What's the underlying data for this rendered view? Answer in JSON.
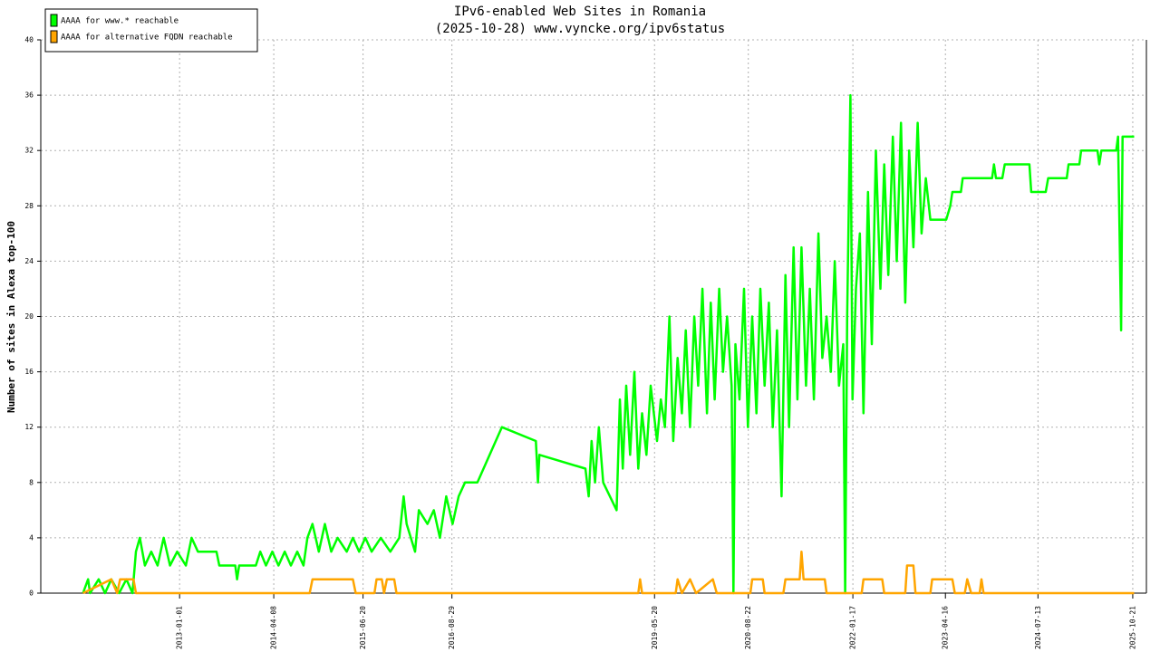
{
  "chart_data": {
    "type": "line",
    "title": "IPv6-enabled Web Sites in Romania",
    "subtitle": "(2025-10-28) www.vyncke.org/ipv6status",
    "y_label": "Number of sites in Alexa top-100",
    "xlim": [
      "2011-02-20",
      "2025-12-27"
    ],
    "xticks": [
      "2013-01-01",
      "2014-04-08",
      "2015-06-20",
      "2016-08-29",
      "2019-05-20",
      "2020-08-22",
      "2022-01-17",
      "2023-04-16",
      "2024-07-13",
      "2025-10-21"
    ],
    "ylim": [
      0,
      40
    ],
    "yticks": [
      0,
      4,
      8,
      12,
      16,
      20,
      24,
      28,
      32,
      36,
      40
    ],
    "grid": true,
    "legend": "top-left",
    "series": [
      {
        "name": "AAAA for www.* reachable",
        "color": "#00ff00",
        "x": [
          "2011-09-15",
          "2011-10-10",
          "2011-10-20",
          "2011-12-01",
          "2012-01-01",
          "2012-02-01",
          "2012-03-10",
          "2012-04-15",
          "2012-05-15",
          "2012-06-01",
          "2012-06-20",
          "2012-07-15",
          "2012-08-15",
          "2012-09-15",
          "2012-10-15",
          "2012-11-15",
          "2012-12-20",
          "2013-02-01",
          "2013-03-01",
          "2013-04-01",
          "2013-07-01",
          "2013-07-15",
          "2013-10-01",
          "2013-10-10",
          "2013-10-20",
          "2014-01-10",
          "2014-02-01",
          "2014-03-01",
          "2014-04-01",
          "2014-05-01",
          "2014-06-01",
          "2014-07-01",
          "2014-08-01",
          "2014-09-01",
          "2014-09-20",
          "2014-10-15",
          "2014-11-15",
          "2014-12-15",
          "2015-01-15",
          "2015-02-15",
          "2015-04-01",
          "2015-05-01",
          "2015-06-01",
          "2015-07-01",
          "2015-08-01",
          "2015-09-15",
          "2015-11-01",
          "2015-12-15",
          "2016-01-05",
          "2016-01-20",
          "2016-03-01",
          "2016-03-20",
          "2016-05-01",
          "2016-06-01",
          "2016-07-01",
          "2016-08-01",
          "2016-09-01",
          "2016-10-01",
          "2016-11-01",
          "2017-01-01",
          "2017-05-01",
          "2017-10-15",
          "2017-10-25",
          "2017-11-01",
          "2018-06-15",
          "2018-07-01",
          "2018-07-15",
          "2018-08-01",
          "2018-08-20",
          "2018-09-10",
          "2018-11-15",
          "2018-12-01",
          "2018-12-15",
          "2019-01-01",
          "2019-01-20",
          "2019-02-10",
          "2019-03-01",
          "2019-03-20",
          "2019-04-10",
          "2019-05-01",
          "2019-06-01",
          "2019-06-20",
          "2019-07-10",
          "2019-08-01",
          "2019-08-20",
          "2019-09-10",
          "2019-10-01",
          "2019-10-20",
          "2019-11-10",
          "2019-12-01",
          "2019-12-20",
          "2020-01-10",
          "2020-02-01",
          "2020-02-20",
          "2020-03-10",
          "2020-04-01",
          "2020-04-20",
          "2020-05-10",
          "2020-06-01",
          "2020-06-10",
          "2020-06-20",
          "2020-07-10",
          "2020-08-01",
          "2020-08-20",
          "2020-09-10",
          "2020-10-01",
          "2020-10-20",
          "2020-11-10",
          "2020-12-01",
          "2020-12-20",
          "2021-01-10",
          "2021-02-01",
          "2021-02-20",
          "2021-03-10",
          "2021-04-01",
          "2021-04-20",
          "2021-05-10",
          "2021-06-01",
          "2021-06-20",
          "2021-07-10",
          "2021-08-01",
          "2021-08-20",
          "2021-09-10",
          "2021-10-01",
          "2021-10-20",
          "2021-11-10",
          "2021-12-01",
          "2021-12-10",
          "2021-12-20",
          "2022-01-05",
          "2022-01-15",
          "2022-02-01",
          "2022-02-20",
          "2022-03-10",
          "2022-04-01",
          "2022-04-20",
          "2022-05-10",
          "2022-06-01",
          "2022-06-20",
          "2022-07-10",
          "2022-08-01",
          "2022-08-20",
          "2022-09-10",
          "2022-10-01",
          "2022-10-20",
          "2022-11-10",
          "2022-12-01",
          "2022-12-20",
          "2023-01-10",
          "2023-02-01",
          "2023-04-20",
          "2023-05-10",
          "2023-05-20",
          "2023-07-01",
          "2023-07-10",
          "2023-12-01",
          "2023-12-10",
          "2023-12-20",
          "2024-01-20",
          "2024-02-01",
          "2024-06-01",
          "2024-06-10",
          "2024-08-20",
          "2024-09-01",
          "2024-12-01",
          "2024-12-10",
          "2025-02-01",
          "2025-02-10",
          "2025-05-01",
          "2025-05-10",
          "2025-05-20",
          "2025-08-01",
          "2025-08-10",
          "2025-08-25",
          "2025-09-01",
          "2025-10-28"
        ],
        "values": [
          0,
          1,
          0,
          1,
          0,
          1,
          0,
          1,
          0,
          3,
          4,
          2,
          3,
          2,
          4,
          2,
          3,
          2,
          4,
          3,
          3,
          2,
          2,
          1,
          2,
          2,
          3,
          2,
          3,
          2,
          3,
          2,
          3,
          2,
          4,
          5,
          3,
          5,
          3,
          4,
          3,
          4,
          3,
          4,
          3,
          4,
          3,
          4,
          7,
          5,
          3,
          6,
          5,
          6,
          4,
          7,
          5,
          7,
          8,
          8,
          12,
          11,
          8,
          10,
          9,
          7,
          11,
          8,
          12,
          8,
          6,
          14,
          9,
          15,
          10,
          16,
          9,
          13,
          10,
          15,
          11,
          14,
          12,
          20,
          11,
          17,
          13,
          19,
          12,
          20,
          15,
          22,
          13,
          21,
          14,
          22,
          16,
          20,
          15,
          0,
          18,
          14,
          22,
          12,
          20,
          13,
          22,
          15,
          21,
          12,
          19,
          7,
          23,
          12,
          25,
          14,
          25,
          15,
          22,
          14,
          26,
          17,
          20,
          16,
          24,
          15,
          18,
          0,
          20,
          36,
          14,
          22,
          26,
          13,
          29,
          18,
          32,
          22,
          31,
          23,
          33,
          24,
          34,
          21,
          32,
          25,
          34,
          26,
          30,
          27,
          27,
          28,
          29,
          29,
          30,
          30,
          31,
          30,
          30,
          31,
          31,
          29,
          29,
          30,
          30,
          31,
          31,
          32,
          32,
          31,
          32,
          32,
          33,
          19,
          33,
          33
        ]
      },
      {
        "name": "AAAA for alternative FQDN reachable",
        "color": "#ffa500",
        "x": [
          "2011-09-15",
          "2012-02-01",
          "2012-03-01",
          "2012-03-15",
          "2012-05-20",
          "2012-06-01",
          "2014-10-01",
          "2014-10-15",
          "2015-05-01",
          "2015-05-15",
          "2015-08-15",
          "2015-08-25",
          "2015-09-20",
          "2015-10-01",
          "2015-10-15",
          "2015-11-20",
          "2015-12-01",
          "2019-03-01",
          "2019-03-10",
          "2019-03-20",
          "2019-09-01",
          "2019-09-10",
          "2019-10-01",
          "2019-11-10",
          "2019-12-10",
          "2020-03-01",
          "2020-03-20",
          "2020-09-01",
          "2020-09-10",
          "2020-11-01",
          "2020-11-10",
          "2021-02-10",
          "2021-02-20",
          "2021-05-01",
          "2021-05-10",
          "2021-05-20",
          "2021-09-01",
          "2021-09-10",
          "2022-03-01",
          "2022-03-10",
          "2022-06-10",
          "2022-06-20",
          "2022-10-01",
          "2022-10-10",
          "2022-11-10",
          "2022-11-20",
          "2023-02-01",
          "2023-02-10",
          "2023-05-20",
          "2023-06-01",
          "2023-07-20",
          "2023-08-01",
          "2023-08-20",
          "2023-10-01",
          "2023-10-10",
          "2023-10-20",
          "2025-10-28"
        ],
        "values": [
          0,
          1,
          0,
          1,
          1,
          0,
          0,
          1,
          1,
          0,
          0,
          1,
          1,
          0,
          1,
          1,
          0,
          0,
          1,
          0,
          0,
          1,
          0,
          1,
          0,
          1,
          0,
          0,
          1,
          1,
          0,
          0,
          1,
          1,
          3,
          1,
          1,
          0,
          0,
          1,
          1,
          0,
          0,
          2,
          2,
          0,
          0,
          1,
          1,
          0,
          0,
          1,
          0,
          0,
          1,
          0,
          0
        ]
      }
    ]
  }
}
